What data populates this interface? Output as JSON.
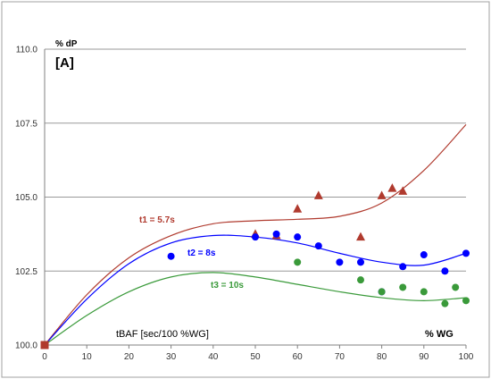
{
  "chart_data": {
    "type": "scatter",
    "panel_label": "[A]",
    "ylabel": "% dP",
    "xlabel": "% WG",
    "annotation": "tBAF [sec/100 %WG]",
    "xlim": [
      0,
      100
    ],
    "ylim": [
      100.0,
      110.0
    ],
    "x_ticks": [
      0,
      10,
      20,
      30,
      40,
      50,
      60,
      70,
      80,
      90,
      100
    ],
    "y_ticks": [
      "100.0",
      "102.5",
      "105.0",
      "107.5",
      "110.0"
    ],
    "y_tick_values": [
      100.0,
      102.5,
      105.0,
      107.5,
      110.0
    ],
    "grid": "horizontal",
    "origin_point": {
      "x": 0,
      "y": 100.0,
      "color": "#b03a2e"
    },
    "series": [
      {
        "name": "t1 = 5.7s",
        "marker": "triangle",
        "color": "#b03a2e",
        "points": [
          [
            50,
            103.75
          ],
          [
            55,
            103.7
          ],
          [
            60,
            104.6
          ],
          [
            65,
            105.05
          ],
          [
            75,
            103.65
          ],
          [
            80,
            105.05
          ],
          [
            82.5,
            105.3
          ],
          [
            85,
            105.2
          ]
        ],
        "trend": [
          [
            0,
            100.0
          ],
          [
            10,
            101.7
          ],
          [
            20,
            102.95
          ],
          [
            30,
            103.7
          ],
          [
            40,
            104.1
          ],
          [
            50,
            104.2
          ],
          [
            60,
            104.25
          ],
          [
            70,
            104.35
          ],
          [
            80,
            104.8
          ],
          [
            90,
            105.9
          ],
          [
            100,
            107.45
          ]
        ]
      },
      {
        "name": "t2 = 8s",
        "marker": "circle",
        "color": "#0000ff",
        "points": [
          [
            30,
            103.0
          ],
          [
            50,
            103.65
          ],
          [
            55,
            103.75
          ],
          [
            60,
            103.65
          ],
          [
            65,
            103.35
          ],
          [
            70,
            102.8
          ],
          [
            75,
            102.8
          ],
          [
            80,
            101.8
          ],
          [
            85,
            102.65
          ],
          [
            90,
            103.05
          ],
          [
            95,
            102.5
          ],
          [
            100,
            103.1
          ]
        ],
        "trend": [
          [
            0,
            100.0
          ],
          [
            10,
            101.55
          ],
          [
            20,
            102.75
          ],
          [
            30,
            103.45
          ],
          [
            40,
            103.7
          ],
          [
            50,
            103.65
          ],
          [
            60,
            103.45
          ],
          [
            70,
            103.1
          ],
          [
            80,
            102.8
          ],
          [
            90,
            102.7
          ],
          [
            100,
            103.1
          ]
        ]
      },
      {
        "name": "t3 = 10s",
        "marker": "circle",
        "color": "#3a9a3a",
        "points": [
          [
            60,
            102.8
          ],
          [
            75,
            102.2
          ],
          [
            80,
            101.8
          ],
          [
            85,
            101.95
          ],
          [
            90,
            101.8
          ],
          [
            95,
            101.4
          ],
          [
            97.5,
            101.95
          ],
          [
            100,
            101.5
          ]
        ],
        "trend": [
          [
            0,
            100.0
          ],
          [
            10,
            101.0
          ],
          [
            20,
            101.8
          ],
          [
            30,
            102.3
          ],
          [
            40,
            102.45
          ],
          [
            50,
            102.3
          ],
          [
            60,
            102.05
          ],
          [
            70,
            101.8
          ],
          [
            80,
            101.6
          ],
          [
            90,
            101.5
          ],
          [
            100,
            101.6
          ]
        ]
      }
    ]
  }
}
